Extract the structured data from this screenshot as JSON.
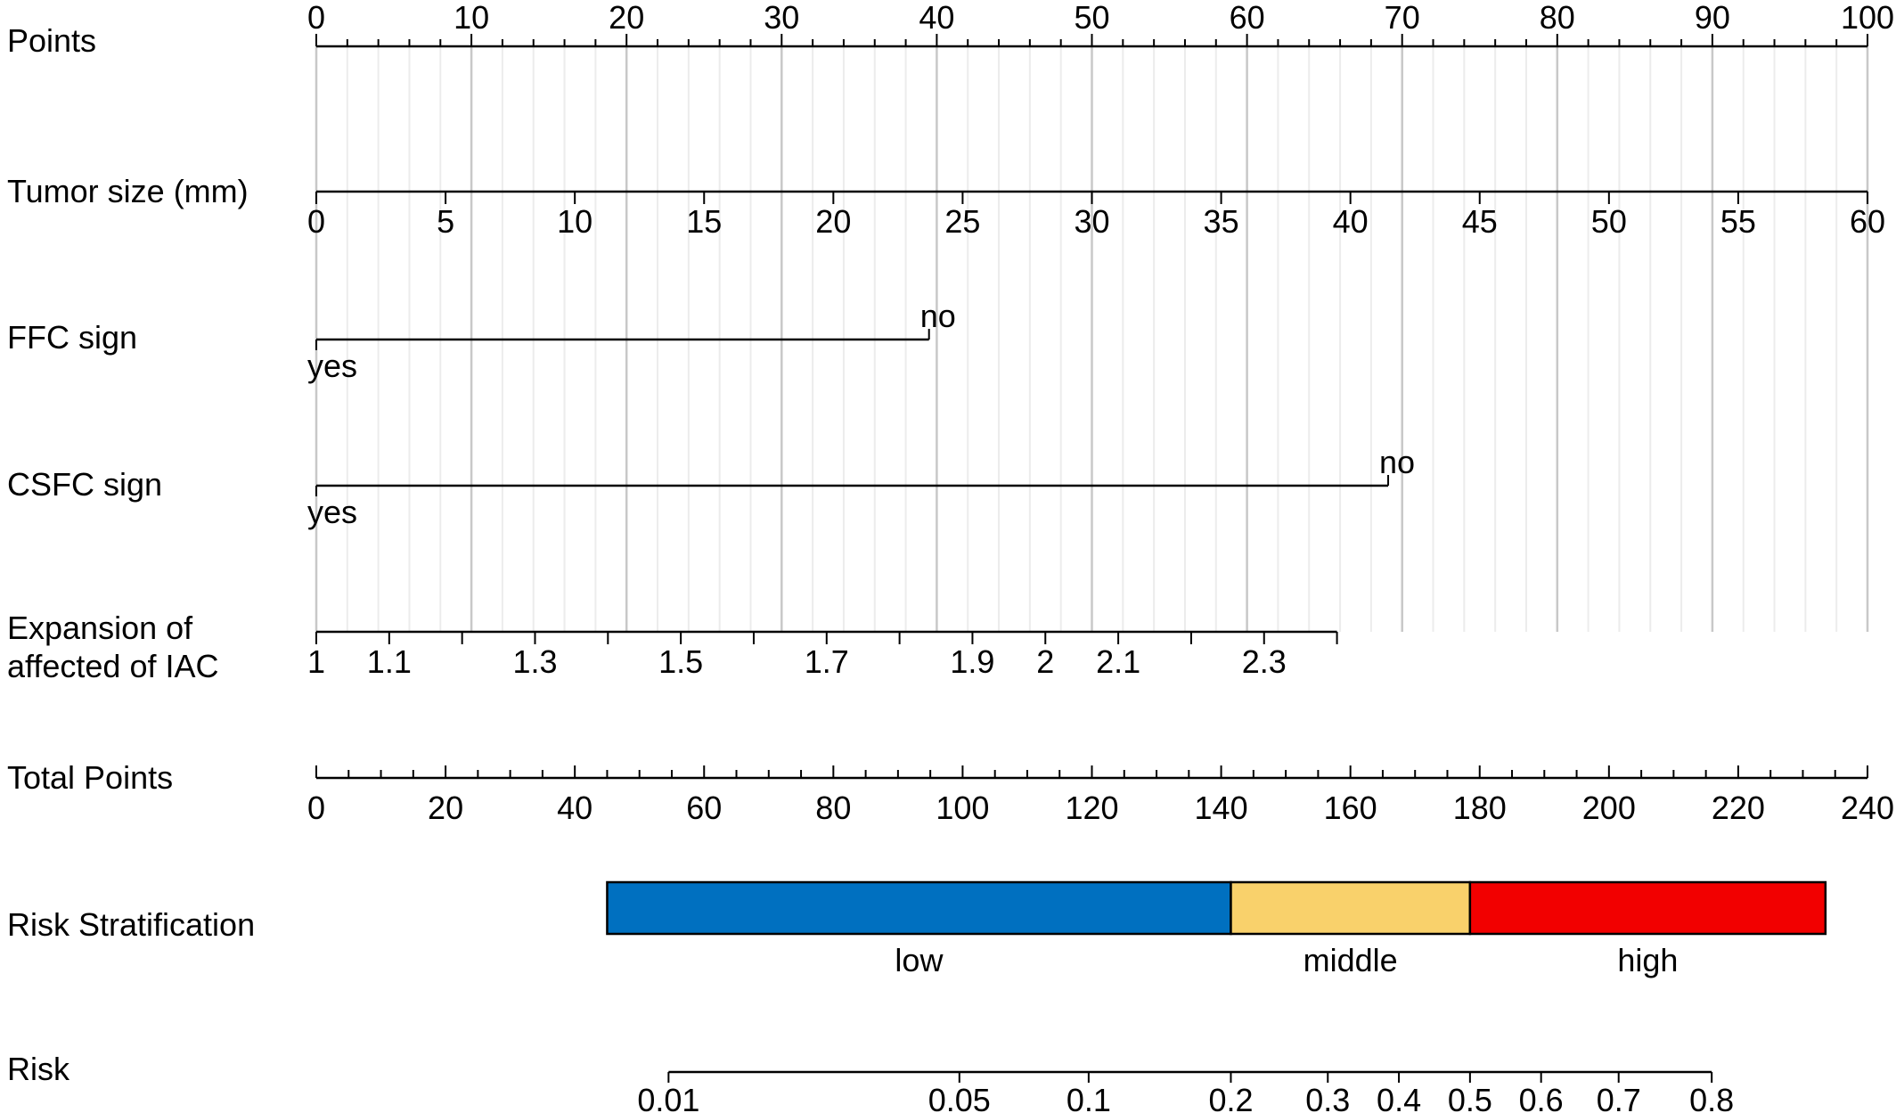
{
  "colors": {
    "low": "#0070C0",
    "middle": "#F9D16B",
    "high": "#F20000",
    "grid_major": "#c8c8c8",
    "grid_minor": "#ececec"
  },
  "chart_data": {
    "type": "nomogram",
    "title": "",
    "points_scale": {
      "label": "Points",
      "min": 0,
      "max": 100,
      "ticks": [
        "0",
        "10",
        "20",
        "30",
        "40",
        "50",
        "60",
        "70",
        "80",
        "90",
        "100"
      ],
      "minor_step": 2,
      "grid": true
    },
    "variables": [
      {
        "label": "Tumor size (mm)",
        "type": "continuous",
        "value_min": 0,
        "value_max": 60,
        "points_min": 0,
        "points_max": 100,
        "tick_values": [
          0,
          5,
          10,
          15,
          20,
          25,
          30,
          35,
          40,
          45,
          50,
          55,
          60
        ],
        "tick_labels": [
          "0",
          "5",
          "10",
          "15",
          "20",
          "25",
          "30",
          "35",
          "40",
          "45",
          "50",
          "55",
          "60"
        ]
      },
      {
        "label": "FFC sign",
        "type": "categorical",
        "levels": [
          {
            "label": "yes",
            "points": 0
          },
          {
            "label": "no",
            "points": 39.5
          }
        ]
      },
      {
        "label": "CSFC sign",
        "type": "categorical",
        "levels": [
          {
            "label": "yes",
            "points": 0
          },
          {
            "label": "no",
            "points": 69.1
          }
        ]
      },
      {
        "label": "Expansion of affected of IAC",
        "label_lines": [
          "Expansion of",
          "affected of IAC"
        ],
        "type": "continuous",
        "value_min": 1,
        "value_max": 2.4,
        "points_min": 0,
        "points_max": 65.8,
        "tick_values": [
          1,
          1.1,
          1.2,
          1.3,
          1.4,
          1.5,
          1.6,
          1.7,
          1.8,
          1.9,
          2,
          2.1,
          2.2,
          2.3,
          2.4
        ],
        "tick_labels": [
          "1",
          "1.1",
          "",
          "1.3",
          "",
          "1.5",
          "",
          "1.7",
          "",
          "1.9",
          "2",
          "2.1",
          "",
          "2.3",
          ""
        ]
      }
    ],
    "total_points": {
      "label": "Total Points",
      "min": 0,
      "max": 240,
      "ticks": [
        "0",
        "20",
        "40",
        "60",
        "80",
        "100",
        "120",
        "140",
        "160",
        "180",
        "200",
        "220",
        "240"
      ],
      "minor_step": 5
    },
    "risk_stratification": {
      "label": "Risk Stratification",
      "bands": [
        {
          "label": "low",
          "from": 45,
          "to": 141.5,
          "color": "#0070C0"
        },
        {
          "label": "middle",
          "from": 141.5,
          "to": 178.5,
          "color": "#F9D16B"
        },
        {
          "label": "high",
          "from": 178.5,
          "to": 233.5,
          "color": "#F20000"
        }
      ]
    },
    "risk": {
      "label": "Risk",
      "total_points_min": 54.5,
      "total_points_max": 215.9,
      "ticks": [
        {
          "label": "0.01",
          "value": 0.01,
          "total_points": 54.5
        },
        {
          "label": "0.05",
          "value": 0.05,
          "total_points": 99.5
        },
        {
          "label": "0.1",
          "value": 0.1,
          "total_points": 119.5
        },
        {
          "label": "0.2",
          "value": 0.2,
          "total_points": 141.5
        },
        {
          "label": "0.3",
          "value": 0.3,
          "total_points": 156.5
        },
        {
          "label": "0.4",
          "value": 0.4,
          "total_points": 167.5
        },
        {
          "label": "0.5",
          "value": 0.5,
          "total_points": 178.5
        },
        {
          "label": "0.6",
          "value": 0.6,
          "total_points": 189.5
        },
        {
          "label": "0.7",
          "value": 0.7,
          "total_points": 201.5
        },
        {
          "label": "0.8",
          "value": 0.8,
          "total_points": 215.9
        }
      ]
    }
  }
}
